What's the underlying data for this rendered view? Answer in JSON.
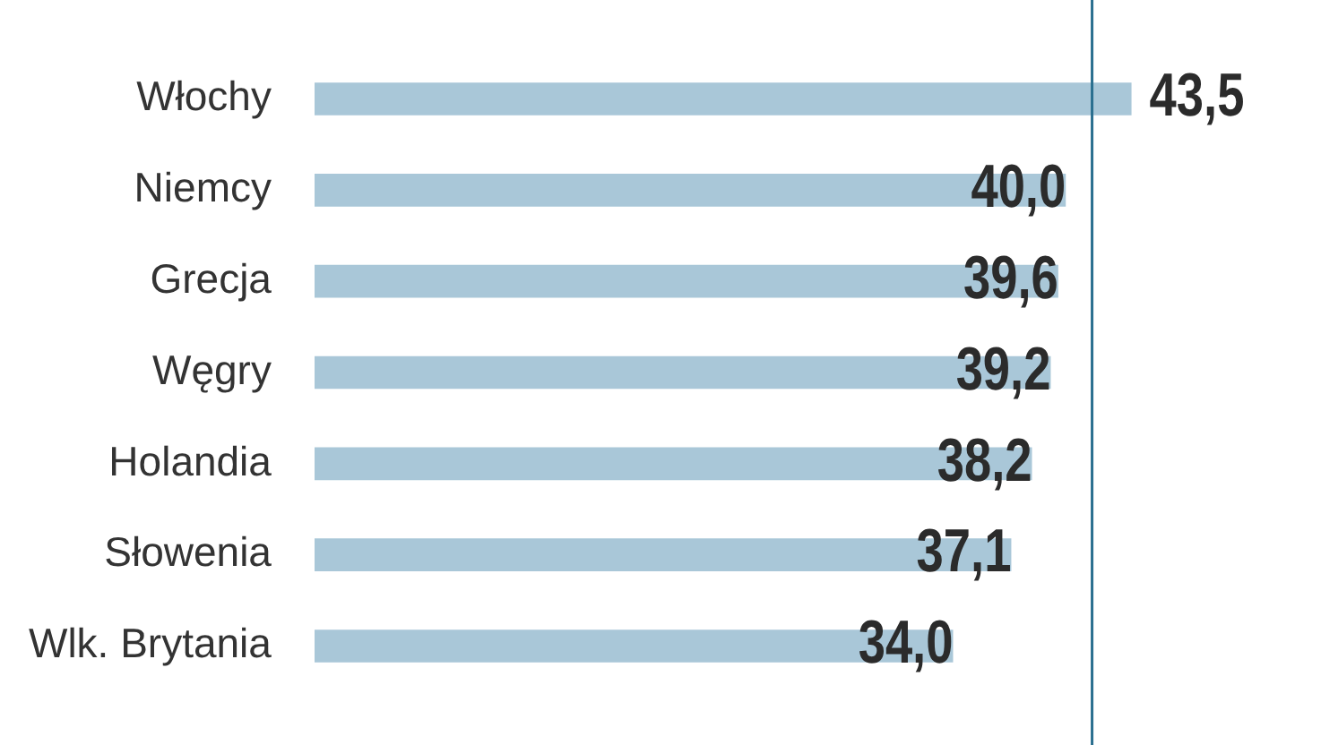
{
  "chart_data": {
    "type": "bar",
    "orientation": "horizontal",
    "categories": [
      "Włochy",
      "Niemcy",
      "Grecja",
      "Węgry",
      "Holandia",
      "Słowenia",
      "Wlk. Brytania"
    ],
    "values": [
      43.5,
      40.0,
      39.6,
      39.2,
      38.2,
      37.1,
      34.0
    ],
    "color": "#a9c7d8",
    "value_labels": [
      "43,5",
      "40,0",
      "39,6",
      "39,2",
      "38,2",
      "37,1",
      "34,0"
    ],
    "tick_labels": "y",
    "legend": false,
    "ref_lines": [
      {
        "axis": "x",
        "value": 41.4,
        "color": "#2a6f8f"
      }
    ]
  }
}
